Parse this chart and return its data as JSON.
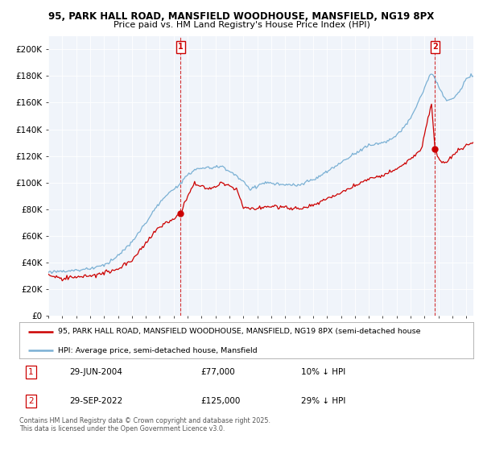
{
  "title_line1": "95, PARK HALL ROAD, MANSFIELD WOODHOUSE, MANSFIELD, NG19 8PX",
  "title_line2": "Price paid vs. HM Land Registry's House Price Index (HPI)",
  "legend_label_red": "95, PARK HALL ROAD, MANSFIELD WOODHOUSE, MANSFIELD, NG19 8PX (semi-detached house",
  "legend_label_blue": "HPI: Average price, semi-detached house, Mansfield",
  "annotation1_date": "29-JUN-2004",
  "annotation1_price": "£77,000",
  "annotation1_hpi": "10% ↓ HPI",
  "annotation1_year": 2004.5,
  "annotation1_value": 77000,
  "annotation2_date": "29-SEP-2022",
  "annotation2_price": "£125,000",
  "annotation2_hpi": "29% ↓ HPI",
  "annotation2_year": 2022.75,
  "annotation2_value": 125000,
  "footer": "Contains HM Land Registry data © Crown copyright and database right 2025.\nThis data is licensed under the Open Government Licence v3.0.",
  "ylim": [
    0,
    210000
  ],
  "yticks": [
    0,
    20000,
    40000,
    60000,
    80000,
    100000,
    120000,
    140000,
    160000,
    180000,
    200000
  ],
  "red_color": "#cc0000",
  "blue_color": "#7ab0d4",
  "background_color": "#ffffff",
  "chart_bg": "#f0f4fa",
  "grid_color": "#ffffff",
  "xstart": 1995,
  "xend": 2025.5
}
